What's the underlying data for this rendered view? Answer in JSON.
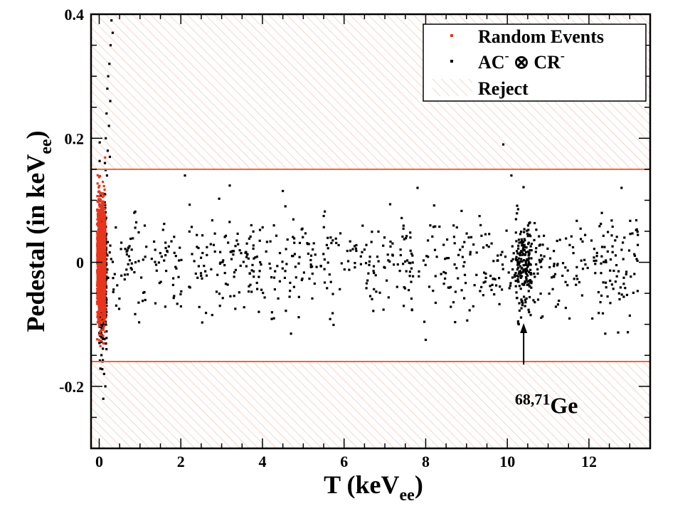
{
  "chart_data": {
    "type": "scatter",
    "xlabel": {
      "main": "T (keV",
      "sub": "ee",
      "close": ")"
    },
    "ylabel": {
      "main": "Pedestal (in keV",
      "sub": "ee",
      "close": ")"
    },
    "xlim": [
      -0.2,
      13.5
    ],
    "ylim": [
      -0.3,
      0.4
    ],
    "x_ticks": [
      0,
      2,
      4,
      6,
      8,
      10,
      12
    ],
    "y_ticks": [
      -0.2,
      0,
      0.2,
      0.4
    ],
    "y_tick_labels": [
      "-0.2",
      "0",
      "0.2",
      "0.4"
    ],
    "reject_bounds": {
      "upper": 0.15,
      "lower": -0.16
    },
    "colors": {
      "random": "#e8351c",
      "selected": "#000000",
      "reject_line": "#f0643c",
      "hatch": "#f4b8a8"
    },
    "legend": {
      "position": "top-right",
      "entries": [
        {
          "label": "Random Events",
          "marker": "red-dot"
        },
        {
          "label_parts": [
            "AC",
            "-",
            " ⊗ CR",
            "-"
          ],
          "marker": "black-dot"
        },
        {
          "label": "Reject",
          "marker": "hatch"
        }
      ]
    },
    "annotation": {
      "sup": "68,71",
      "text": "Ge",
      "x": 10.4,
      "y_from": -0.098,
      "y_to": -0.165
    },
    "series": [
      {
        "name": "Random Events",
        "color": "#e8351c",
        "x_range": [
          -0.05,
          0.15
        ],
        "y_center": 0.0,
        "y_spread": 0.045,
        "count": 1600,
        "seed": 7
      },
      {
        "name": "AC⁻ ⊗ CR⁻",
        "color": "#000000",
        "seed": 11,
        "clusters": [
          {
            "x_range": [
              0.0,
              0.18
            ],
            "y_center": -0.02,
            "y_spread": 0.06,
            "count": 450
          },
          {
            "x_range": [
              0.15,
              13.2
            ],
            "y_center": 0.0,
            "y_spread": 0.04,
            "count": 720
          },
          {
            "x_range": [
              10.2,
              10.6
            ],
            "y_center": -0.01,
            "y_spread": 0.035,
            "count": 170
          }
        ],
        "points": [
          [
            0.3,
            0.39
          ],
          [
            0.33,
            0.37
          ],
          [
            0.28,
            0.35
          ],
          [
            0.25,
            0.32
          ],
          [
            0.22,
            0.3
          ],
          [
            0.2,
            0.28
          ],
          [
            0.27,
            0.26
          ],
          [
            0.18,
            0.24
          ],
          [
            0.24,
            0.22
          ],
          [
            0.16,
            0.2
          ],
          [
            0.21,
            0.18
          ],
          [
            0.26,
            0.17
          ],
          [
            0.14,
            0.16
          ],
          [
            0.19,
            0.14
          ],
          [
            0.12,
            -0.18
          ],
          [
            0.15,
            -0.2
          ],
          [
            0.1,
            -0.22
          ],
          [
            0.08,
            -0.16
          ],
          [
            9.9,
            0.19
          ],
          [
            10.1,
            0.14
          ],
          [
            2.1,
            0.14
          ],
          [
            12.8,
            0.12
          ],
          [
            7.8,
            0.12
          ],
          [
            4.5,
            0.115
          ],
          [
            12.4,
            -0.115
          ],
          [
            8.0,
            -0.125
          ],
          [
            4.7,
            -0.115
          ]
        ]
      }
    ]
  }
}
